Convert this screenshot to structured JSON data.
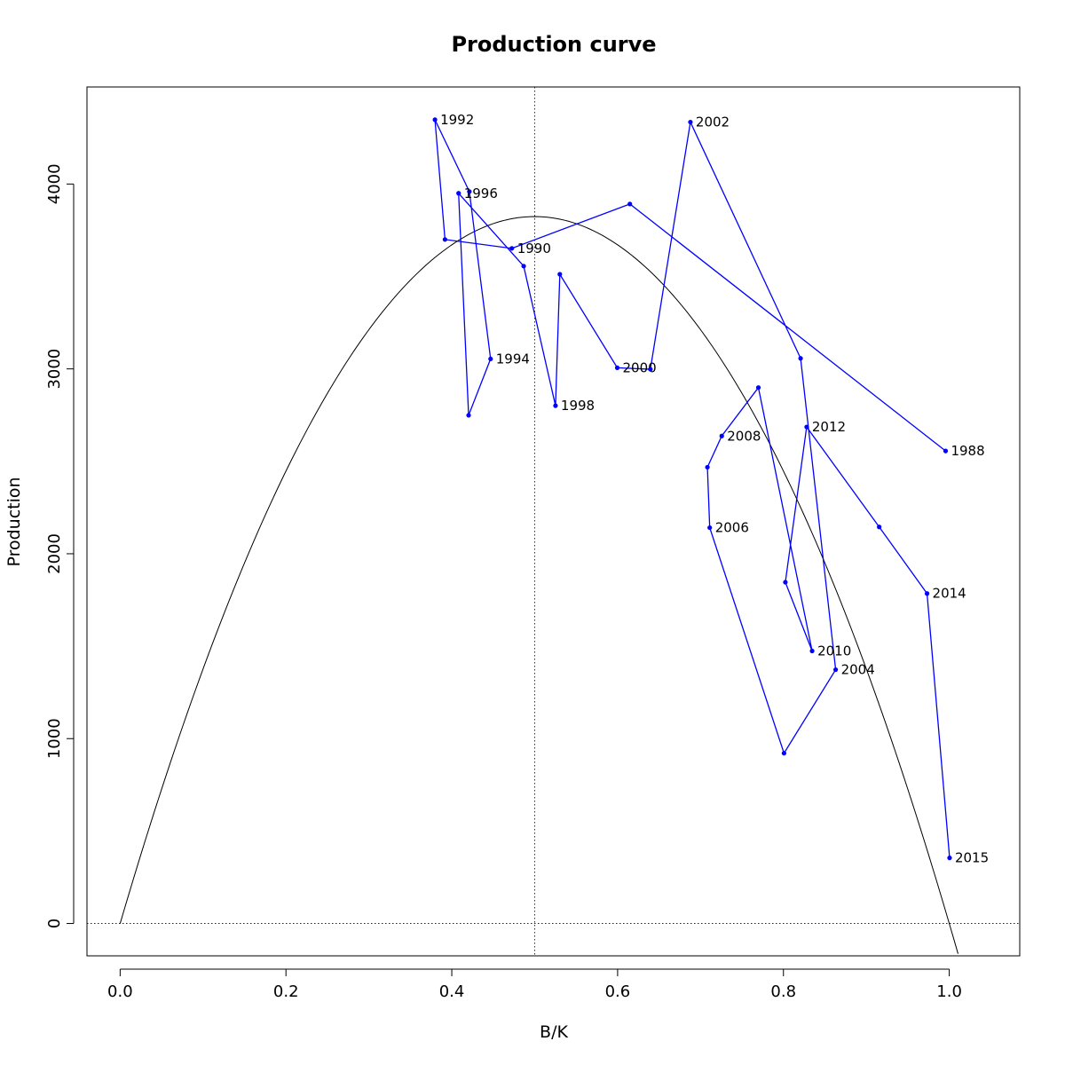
{
  "chart_data": {
    "type": "line",
    "title": "Production curve",
    "xlabel": "B/K",
    "ylabel": "Production",
    "xlim": [
      -0.04,
      1.085
    ],
    "ylim": [
      -175,
      4525
    ],
    "x_ticks": [
      0.0,
      0.2,
      0.4,
      0.6,
      0.8,
      1.0
    ],
    "x_tick_labels": [
      "0.0",
      "0.2",
      "0.4",
      "0.6",
      "0.8",
      "1.0"
    ],
    "y_ticks": [
      0,
      1000,
      2000,
      3000,
      4000
    ],
    "y_tick_labels": [
      "0",
      "1000",
      "2000",
      "3000",
      "4000"
    ],
    "grid": false,
    "reference_lines": {
      "vertical_x": 0.5,
      "horizontal_y": 0
    },
    "curve": {
      "name": "",
      "color": "#000000",
      "formula": "quadratic",
      "x_range": [
        0.0,
        1.0106
      ],
      "peak": {
        "x": 0.5,
        "y": 3824
      }
    },
    "series": [
      {
        "name": "",
        "color": "#0000ff",
        "points": [
          {
            "x": 0.9956,
            "y": 2556,
            "label": "1988"
          },
          {
            "x": 0.6148,
            "y": 3892,
            "label": ""
          },
          {
            "x": 0.4724,
            "y": 3652,
            "label": "1990"
          },
          {
            "x": 0.3918,
            "y": 3700,
            "label": ""
          },
          {
            "x": 0.3797,
            "y": 4348,
            "label": "1992"
          },
          {
            "x": 0.4212,
            "y": 3959,
            "label": ""
          },
          {
            "x": 0.4468,
            "y": 3054,
            "label": "1994"
          },
          {
            "x": 0.4203,
            "y": 2749,
            "label": ""
          },
          {
            "x": 0.4082,
            "y": 3950,
            "label": "1996"
          },
          {
            "x": 0.4867,
            "y": 3556,
            "label": ""
          },
          {
            "x": 0.5251,
            "y": 2801,
            "label": "1998"
          },
          {
            "x": 0.5303,
            "y": 3512,
            "label": ""
          },
          {
            "x": 0.5996,
            "y": 3006,
            "label": "2000"
          },
          {
            "x": 0.6395,
            "y": 2998,
            "label": ""
          },
          {
            "x": 0.6878,
            "y": 4335,
            "label": "2002"
          },
          {
            "x": 0.8207,
            "y": 3057,
            "label": ""
          },
          {
            "x": 0.863,
            "y": 1373,
            "label": "2004"
          },
          {
            "x": 0.8007,
            "y": 921,
            "label": ""
          },
          {
            "x": 0.7111,
            "y": 2141,
            "label": "2006"
          },
          {
            "x": 0.7083,
            "y": 2468,
            "label": ""
          },
          {
            "x": 0.7256,
            "y": 2637,
            "label": "2008"
          },
          {
            "x": 0.7698,
            "y": 2899,
            "label": ""
          },
          {
            "x": 0.8346,
            "y": 1474,
            "label": "2010"
          },
          {
            "x": 0.8023,
            "y": 1846,
            "label": ""
          },
          {
            "x": 0.828,
            "y": 2686,
            "label": "2012"
          },
          {
            "x": 0.9155,
            "y": 2145,
            "label": ""
          },
          {
            "x": 0.9732,
            "y": 1785,
            "label": "2014"
          },
          {
            "x": 1.0004,
            "y": 355,
            "label": "2015"
          }
        ]
      }
    ]
  }
}
